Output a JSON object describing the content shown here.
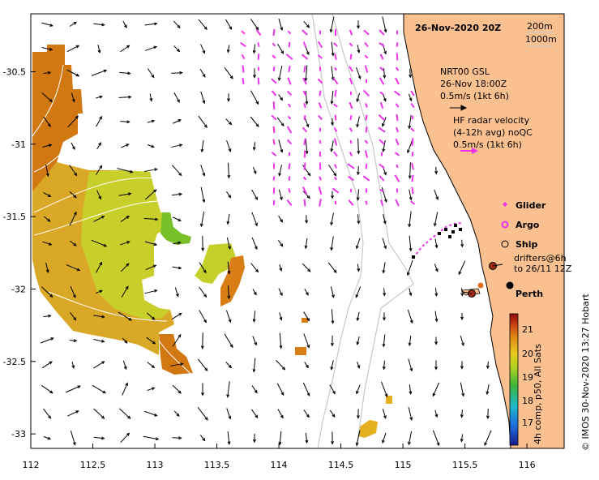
{
  "map": {
    "title": "26-Nov-2020 20Z",
    "lon_range": [
      112,
      116.3
    ],
    "lat_range": [
      -33.1,
      -30.1
    ],
    "x_ticks": [
      "112",
      "112.5",
      "113",
      "113.5",
      "114",
      "114.5",
      "115",
      "115.5",
      "116"
    ],
    "y_ticks": [
      "-30.5",
      "-31",
      "-31.5",
      "-32",
      "-32.5",
      "-33"
    ],
    "depth_legend": [
      "200m",
      "1000m"
    ],
    "gsl": {
      "label": "NRT00 GSL",
      "time": "26-Nov 18:00Z",
      "scale": "0.5m/s (1kt 6h)"
    },
    "hf_radar": {
      "line1": "HF radar velocity",
      "line2": "(4-12h avg) noQC",
      "scale": "0.5m/s (1kt 6h)"
    },
    "legend": {
      "glider": "Glider",
      "argo": "Argo",
      "ship": "Ship",
      "drifters1": "drifters@6h",
      "drifters2": "to 26/11 12Z"
    },
    "city": "Perth",
    "colorbar": {
      "ticks": [
        "21",
        "20",
        "19",
        "18",
        "17"
      ],
      "label": "4h comp, p50, All Sats"
    },
    "credit": "© IMOS 30-Nov-2020 13:27 Hobart",
    "colors": {
      "land": "#fbc08f",
      "hf_radar": "#ee33ee",
      "sst_warm": "#d97a10",
      "sst_mid": "#c9d42a",
      "isobath": "#c8c8c8"
    }
  }
}
